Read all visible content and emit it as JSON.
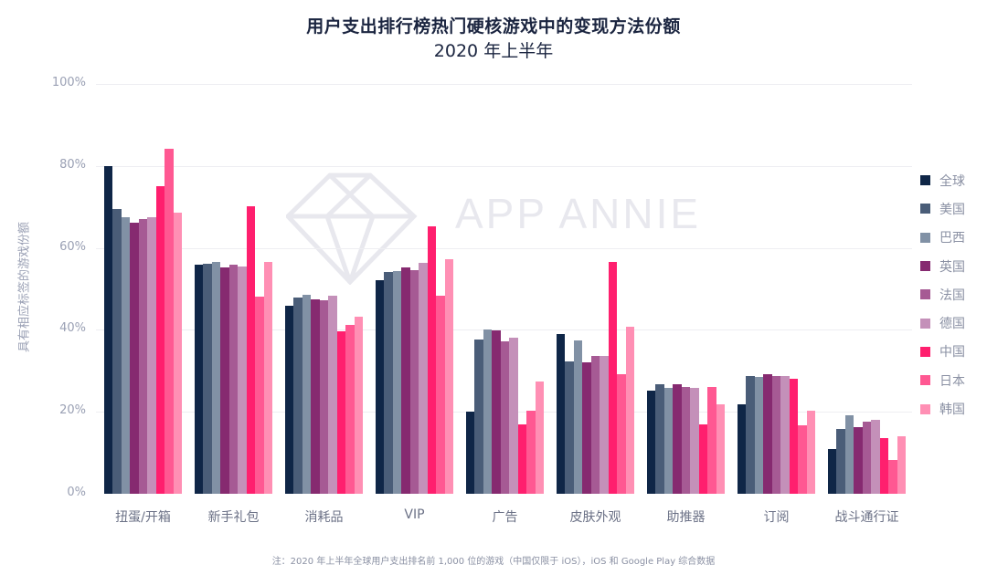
{
  "header": {
    "title": "用户支出排行榜热门硬核游戏中的变现方法份额",
    "subtitle": "2020 年上半年"
  },
  "watermark": {
    "text": "APP ANNIE",
    "icon": "diamond-icon"
  },
  "axes": {
    "ylabel": "具有相应标签的游戏份额",
    "yticks": [
      "100%",
      "80%",
      "60%",
      "40%",
      "20%",
      "0%"
    ]
  },
  "footnote": "注：2020 年上半年全球用户支出排名前 1,000 位的游戏（中国仅限于 iOS），iOS 和 Google Play 综合数据",
  "legend": [
    {
      "label": "全球",
      "color": "#0f2647"
    },
    {
      "label": "美国",
      "color": "#4a5d78"
    },
    {
      "label": "巴西",
      "color": "#8191a5"
    },
    {
      "label": "英国",
      "color": "#862a70"
    },
    {
      "label": "法国",
      "color": "#a65a94"
    },
    {
      "label": "德国",
      "color": "#c490b9"
    },
    {
      "label": "中国",
      "color": "#ff1f6e"
    },
    {
      "label": "日本",
      "color": "#ff5892"
    },
    {
      "label": "韩国",
      "color": "#ff8fb4"
    }
  ],
  "chart_data": {
    "type": "bar",
    "title": "用户支出排行榜热门硬核游戏中的变现方法份额",
    "subtitle": "2020 年上半年",
    "xlabel": "",
    "ylabel": "具有相应标签的游戏份额",
    "ylim": [
      0,
      100
    ],
    "yunit": "%",
    "grid": true,
    "legend_position": "right",
    "categories": [
      "扭蛋/开箱",
      "新手礼包",
      "消耗品",
      "VIP",
      "广告",
      "皮肤外观",
      "助推器",
      "订阅",
      "战斗通行证"
    ],
    "series": [
      {
        "name": "全球",
        "color": "#0f2647",
        "values": [
          80.0,
          56.0,
          45.9,
          52.1,
          20.1,
          39.0,
          25.2,
          21.8,
          10.9
        ]
      },
      {
        "name": "美国",
        "color": "#4a5d78",
        "values": [
          69.5,
          56.2,
          47.9,
          54.1,
          37.7,
          32.3,
          26.7,
          28.7,
          15.8
        ]
      },
      {
        "name": "巴西",
        "color": "#8191a5",
        "values": [
          67.5,
          56.5,
          48.6,
          54.3,
          40.1,
          37.4,
          25.8,
          28.5,
          19.2
        ]
      },
      {
        "name": "英国",
        "color": "#862a70",
        "values": [
          66.2,
          55.2,
          47.4,
          55.2,
          39.9,
          32.1,
          26.7,
          29.2,
          16.3
        ]
      },
      {
        "name": "法国",
        "color": "#a65a94",
        "values": [
          67.1,
          56.0,
          47.2,
          54.6,
          37.2,
          33.6,
          26.0,
          28.7,
          17.6
        ]
      },
      {
        "name": "德国",
        "color": "#c490b9",
        "values": [
          67.5,
          55.5,
          48.3,
          56.3,
          38.1,
          33.6,
          25.8,
          28.7,
          18.0
        ]
      },
      {
        "name": "中国",
        "color": "#ff1f6e",
        "values": [
          75.1,
          70.2,
          39.6,
          65.3,
          16.9,
          56.6,
          16.9,
          28.1,
          13.6
        ]
      },
      {
        "name": "日本",
        "color": "#ff5892",
        "values": [
          84.1,
          48.1,
          41.2,
          48.3,
          20.3,
          29.2,
          26.0,
          16.7,
          8.2
        ]
      },
      {
        "name": "韩国",
        "color": "#ff8fb4",
        "values": [
          68.5,
          56.5,
          43.2,
          57.2,
          27.4,
          40.8,
          21.8,
          20.3,
          14.0
        ]
      }
    ]
  }
}
